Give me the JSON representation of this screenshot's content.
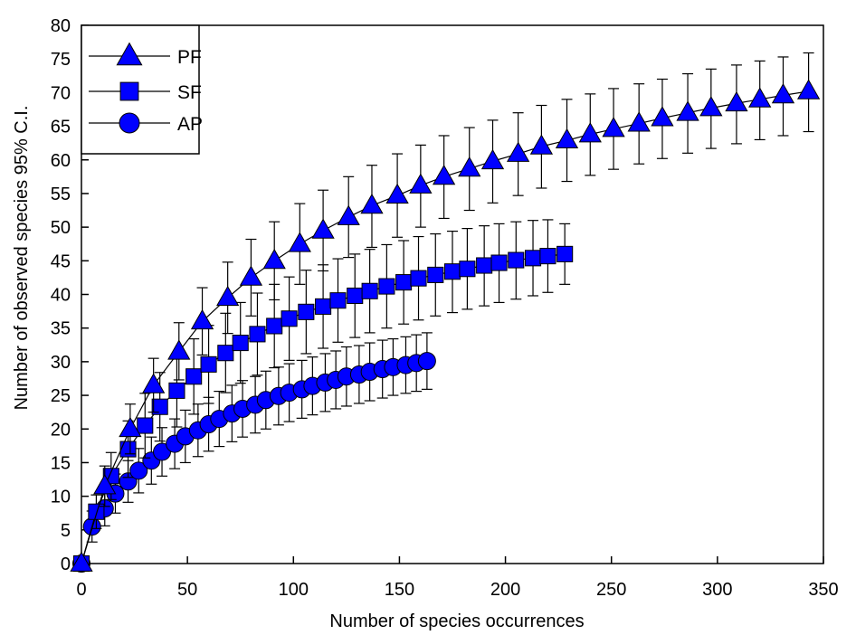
{
  "chart_data": {
    "type": "line",
    "title": "",
    "xlabel": "Number of species occurrences",
    "ylabel": "Number of observed species 95% C.I.",
    "xlim": [
      0,
      350
    ],
    "ylim": [
      0,
      80
    ],
    "xticks": [
      0,
      50,
      100,
      150,
      200,
      250,
      300,
      350
    ],
    "yticks": [
      0,
      5,
      10,
      15,
      20,
      25,
      30,
      35,
      40,
      45,
      50,
      55,
      60,
      65,
      70,
      75,
      80
    ],
    "grid": false,
    "legend": "top-left",
    "series": [
      {
        "name": "PF",
        "marker": "triangle",
        "color": "#0000ff",
        "x": [
          0,
          11,
          23,
          34,
          46,
          57,
          69,
          80,
          91,
          103,
          114,
          126,
          137,
          149,
          160,
          171,
          183,
          194,
          206,
          217,
          229,
          240,
          251,
          263,
          274,
          286,
          297,
          309,
          320,
          331,
          343
        ],
        "y": [
          0,
          11.5,
          20,
          26.5,
          31.5,
          36,
          39.5,
          42.5,
          45,
          47.5,
          49.5,
          51.5,
          53.2,
          54.7,
          56.2,
          57.5,
          58.7,
          59.8,
          60.9,
          62,
          62.9,
          63.8,
          64.6,
          65.4,
          66.2,
          67,
          67.7,
          68.4,
          69,
          69.6,
          70.2
        ],
        "lower": [
          0,
          8.5,
          16.3,
          22.5,
          27.3,
          31,
          34.2,
          36.8,
          39.2,
          41.5,
          43.5,
          45.5,
          47,
          48.5,
          50,
          51.3,
          52.5,
          53.6,
          54.7,
          55.8,
          56.8,
          57.7,
          58.6,
          59.4,
          60.2,
          61,
          61.7,
          62.4,
          63,
          63.6,
          64.2
        ],
        "upper": [
          0,
          14.5,
          23.7,
          30.5,
          35.8,
          41,
          44.8,
          48.2,
          50.8,
          53.5,
          55.5,
          57.5,
          59.2,
          60.9,
          62.2,
          63.6,
          64.8,
          65.9,
          67,
          68.1,
          69,
          69.8,
          70.6,
          71.3,
          72,
          72.8,
          73.5,
          74.1,
          74.7,
          75.3,
          75.9
        ]
      },
      {
        "name": "SF",
        "marker": "square",
        "color": "#0000ff",
        "x": [
          0,
          7,
          14,
          22,
          30,
          37,
          45,
          53,
          60,
          68,
          75,
          83,
          91,
          98,
          106,
          114,
          121,
          129,
          136,
          144,
          152,
          159,
          167,
          175,
          182,
          190,
          197,
          205,
          213,
          220,
          228
        ],
        "y": [
          0,
          7.7,
          13,
          17,
          20.5,
          23.3,
          25.7,
          27.8,
          29.6,
          31.3,
          32.8,
          34.1,
          35.3,
          36.4,
          37.4,
          38.2,
          39.1,
          39.8,
          40.5,
          41.2,
          41.8,
          42.4,
          42.9,
          43.4,
          43.8,
          44.3,
          44.7,
          45.1,
          45.4,
          45.7,
          46
        ],
        "lower": [
          0,
          5.2,
          9.5,
          12.8,
          15.7,
          18.2,
          20.3,
          22.2,
          23.8,
          25.4,
          26.8,
          28,
          29.1,
          30.2,
          31.2,
          32,
          32.9,
          33.6,
          34.3,
          35,
          35.6,
          36.2,
          36.8,
          37.3,
          37.8,
          38.3,
          38.8,
          39.3,
          39.8,
          40.3,
          41.5
        ],
        "upper": [
          0,
          10.2,
          16.5,
          21.2,
          25.3,
          28.4,
          31.1,
          33.4,
          35.4,
          37.2,
          38.8,
          40.2,
          41.5,
          42.6,
          43.6,
          44.4,
          45.3,
          46,
          46.7,
          47.4,
          48,
          48.6,
          49,
          49.4,
          49.8,
          50.2,
          50.5,
          50.8,
          51,
          51.1,
          50.5
        ]
      },
      {
        "name": "AP",
        "marker": "circle",
        "color": "#0000ff",
        "x": [
          0,
          5,
          11,
          16,
          22,
          27,
          33,
          38,
          44,
          49,
          55,
          60,
          65,
          71,
          76,
          82,
          87,
          93,
          98,
          104,
          109,
          115,
          120,
          125,
          131,
          136,
          142,
          147,
          153,
          158,
          163
        ],
        "y": [
          0,
          5.5,
          8.2,
          10.4,
          12.2,
          13.8,
          15.3,
          16.6,
          17.8,
          18.9,
          19.8,
          20.7,
          21.5,
          22.3,
          23,
          23.6,
          24.3,
          24.9,
          25.4,
          25.9,
          26.4,
          26.9,
          27.3,
          27.8,
          28.1,
          28.5,
          28.9,
          29.2,
          29.5,
          29.8,
          30.1
        ],
        "lower": [
          0,
          3.2,
          5.6,
          7.5,
          9.1,
          10.5,
          11.8,
          13,
          14.1,
          15,
          15.9,
          16.7,
          17.4,
          18.1,
          18.8,
          19.4,
          20,
          20.6,
          21.1,
          21.6,
          22.1,
          22.6,
          23,
          23.4,
          23.8,
          24.2,
          24.6,
          25,
          25.3,
          25.6,
          25.9
        ],
        "upper": [
          0,
          7.8,
          10.8,
          13.3,
          15.3,
          17.1,
          18.8,
          20.2,
          21.5,
          22.8,
          23.7,
          24.7,
          25.6,
          26.5,
          27.2,
          27.8,
          28.6,
          29.2,
          29.7,
          30.2,
          30.7,
          31.2,
          31.6,
          32.2,
          32.4,
          32.8,
          33.2,
          33.4,
          33.7,
          34,
          34.3
        ]
      }
    ]
  }
}
